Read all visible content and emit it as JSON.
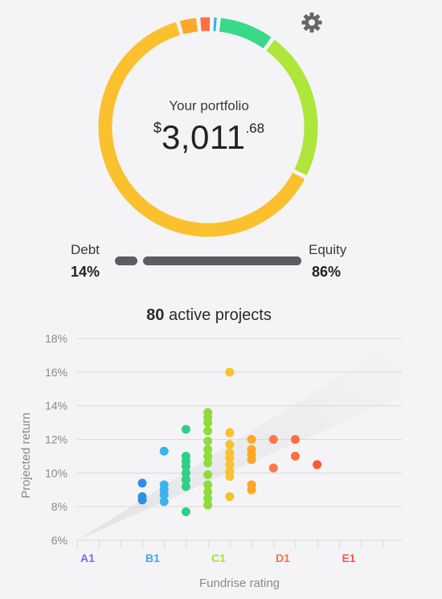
{
  "portfolio": {
    "label": "Your portfolio",
    "currency_symbol": "$",
    "amount_main": "3,011",
    "amount_cents": ".68",
    "donut_segments": [
      {
        "color": "#fbc02d",
        "fraction": 0.63
      },
      {
        "color": "#aee63b",
        "fraction": 0.225
      },
      {
        "color": "#39d98a",
        "fraction": 0.085
      },
      {
        "color": "#29b6f6",
        "fraction": 0.01
      },
      {
        "color": "#ff7043",
        "fraction": 0.02
      },
      {
        "color": "#ffa726",
        "fraction": 0.03
      }
    ]
  },
  "split": {
    "debt_label": "Debt",
    "debt_pct": "14%",
    "equity_label": "Equity",
    "equity_pct": "86%",
    "debt_fraction": 0.14
  },
  "projects": {
    "count": "80",
    "label": "active projects"
  },
  "settings": {
    "icon": "gear-icon"
  },
  "chart_data": {
    "type": "scatter",
    "xlabel": "Fundrise rating",
    "ylabel": "Projected return",
    "x_categories": [
      "A1",
      "B1",
      "C1",
      "D1",
      "E1"
    ],
    "x_category_colors": [
      "#7b68ee",
      "#42a5f5",
      "#a6e22e",
      "#ff7043",
      "#ff5252"
    ],
    "y_ticks": [
      "6%",
      "8%",
      "10%",
      "12%",
      "14%",
      "16%",
      "18%"
    ],
    "ylim": [
      6,
      18
    ],
    "grid": true,
    "points": [
      {
        "x": 3.0,
        "y": 8.4,
        "color": "#2f8ee8"
      },
      {
        "x": 3.0,
        "y": 8.6,
        "color": "#2f8ee8"
      },
      {
        "x": 3.0,
        "y": 9.4,
        "color": "#2f8ee8"
      },
      {
        "x": 4.0,
        "y": 8.3,
        "color": "#3ab3f0"
      },
      {
        "x": 4.0,
        "y": 8.7,
        "color": "#3ab3f0"
      },
      {
        "x": 4.0,
        "y": 9.0,
        "color": "#3ab3f0"
      },
      {
        "x": 4.0,
        "y": 9.3,
        "color": "#3ab3f0"
      },
      {
        "x": 4.0,
        "y": 11.3,
        "color": "#3ab3f0"
      },
      {
        "x": 5.0,
        "y": 7.7,
        "color": "#2ecf86"
      },
      {
        "x": 5.0,
        "y": 9.2,
        "color": "#2ecf86"
      },
      {
        "x": 5.0,
        "y": 9.6,
        "color": "#2ecf86"
      },
      {
        "x": 5.0,
        "y": 10.0,
        "color": "#2ecf86"
      },
      {
        "x": 5.0,
        "y": 10.4,
        "color": "#2ecf86"
      },
      {
        "x": 5.0,
        "y": 10.7,
        "color": "#2ecf86"
      },
      {
        "x": 5.0,
        "y": 11.0,
        "color": "#2ecf86"
      },
      {
        "x": 5.0,
        "y": 12.6,
        "color": "#2ecf86"
      },
      {
        "x": 6.0,
        "y": 8.1,
        "color": "#8edc3a"
      },
      {
        "x": 6.0,
        "y": 8.5,
        "color": "#8edc3a"
      },
      {
        "x": 6.0,
        "y": 8.9,
        "color": "#8edc3a"
      },
      {
        "x": 6.0,
        "y": 9.3,
        "color": "#8edc3a"
      },
      {
        "x": 6.0,
        "y": 9.9,
        "color": "#8edc3a"
      },
      {
        "x": 6.0,
        "y": 10.6,
        "color": "#8edc3a"
      },
      {
        "x": 6.0,
        "y": 11.0,
        "color": "#8edc3a"
      },
      {
        "x": 6.0,
        "y": 11.4,
        "color": "#8edc3a"
      },
      {
        "x": 6.0,
        "y": 11.9,
        "color": "#8edc3a"
      },
      {
        "x": 6.0,
        "y": 12.5,
        "color": "#8edc3a"
      },
      {
        "x": 6.0,
        "y": 13.0,
        "color": "#8edc3a"
      },
      {
        "x": 6.0,
        "y": 13.3,
        "color": "#8edc3a"
      },
      {
        "x": 6.0,
        "y": 13.6,
        "color": "#8edc3a"
      },
      {
        "x": 7.0,
        "y": 8.6,
        "color": "#fbc02d"
      },
      {
        "x": 7.0,
        "y": 9.8,
        "color": "#fbc02d"
      },
      {
        "x": 7.0,
        "y": 10.1,
        "color": "#fbc02d"
      },
      {
        "x": 7.0,
        "y": 10.5,
        "color": "#fbc02d"
      },
      {
        "x": 7.0,
        "y": 10.9,
        "color": "#fbc02d"
      },
      {
        "x": 7.0,
        "y": 11.2,
        "color": "#fbc02d"
      },
      {
        "x": 7.0,
        "y": 11.7,
        "color": "#fbc02d"
      },
      {
        "x": 7.0,
        "y": 12.4,
        "color": "#fbc02d"
      },
      {
        "x": 7.0,
        "y": 16.0,
        "color": "#fbc02d"
      },
      {
        "x": 8.0,
        "y": 9.0,
        "color": "#ffa726"
      },
      {
        "x": 8.0,
        "y": 9.3,
        "color": "#ffa726"
      },
      {
        "x": 8.0,
        "y": 10.8,
        "color": "#ffa726"
      },
      {
        "x": 8.0,
        "y": 11.1,
        "color": "#ffa726"
      },
      {
        "x": 8.0,
        "y": 11.4,
        "color": "#ffa726"
      },
      {
        "x": 8.0,
        "y": 12.0,
        "color": "#ffa726"
      },
      {
        "x": 9.0,
        "y": 10.3,
        "color": "#ff7a45"
      },
      {
        "x": 9.0,
        "y": 12.0,
        "color": "#ff7a45"
      },
      {
        "x": 10.0,
        "y": 11.0,
        "color": "#ff6f3c"
      },
      {
        "x": 10.0,
        "y": 12.0,
        "color": "#ff6f3c"
      },
      {
        "x": 11.0,
        "y": 10.5,
        "color": "#ff5a36"
      }
    ]
  }
}
